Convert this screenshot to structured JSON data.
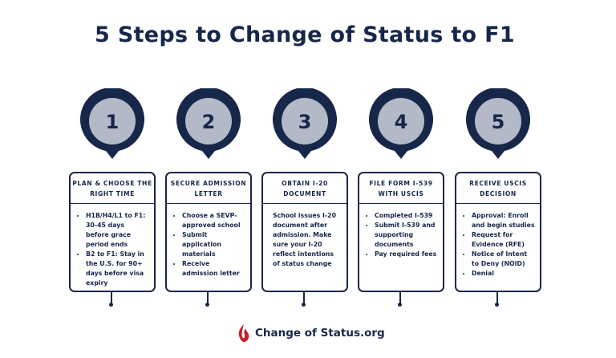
{
  "title": "5 Steps to Change of Status to F1",
  "colors": {
    "navy": "#17274a",
    "circle_fill": "#b3b9c6",
    "logo_red": "#c8202a"
  },
  "steps": [
    {
      "number": "1",
      "heading": "PLAN & CHOOSE THE RIGHT TIME",
      "bullets": [
        "H1B/H4/L1 to F1: 30-45 days before grace period ends",
        "B2 to F1: Stay in the U.S. for 90+ days before visa expiry"
      ]
    },
    {
      "number": "2",
      "heading": "SECURE ADMISSION LETTER",
      "bullets": [
        "Choose a SEVP-approved school",
        "Submit application materials",
        "Receive admission letter"
      ]
    },
    {
      "number": "3",
      "heading": "OBTAIN I-20 DOCUMENT",
      "text": "School issues I-20 document after admission. Make sure your I-20 reflect intentions of status change"
    },
    {
      "number": "4",
      "heading": "FILE FORM I-539 WITH USCIS",
      "bullets": [
        "Completed I-539",
        "Submit I-539 and supporting documents",
        "Pay required fees"
      ]
    },
    {
      "number": "5",
      "heading": "RECEIVE USCIS DECISION",
      "bullets": [
        "Approval: Enroll and begin studies",
        "Request for Evidence (RFE)",
        "Notice of Intent to Deny (NOID)",
        "Denial"
      ]
    }
  ],
  "logo": {
    "text": "Change of Status.org",
    "icon": "flame-icon"
  }
}
